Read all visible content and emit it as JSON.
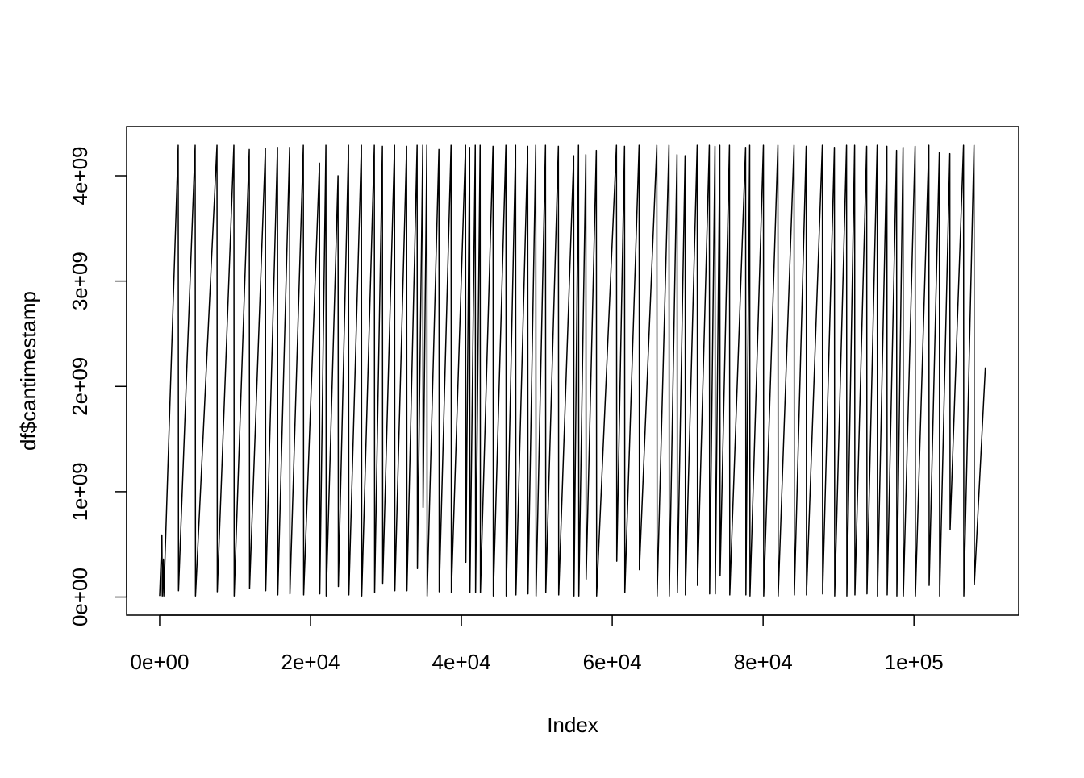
{
  "chart_data": {
    "type": "line",
    "x_label": "Index",
    "y_label": "df$cantimestamp",
    "color": "#000000",
    "xlim": [
      -4380,
      113880
    ],
    "ylim": [
      -172000000,
      4467000000
    ],
    "xticks": [
      {
        "value": 0,
        "label": "0e+00"
      },
      {
        "value": 20000,
        "label": "2e+04"
      },
      {
        "value": 40000,
        "label": "4e+04"
      },
      {
        "value": 60000,
        "label": "6e+04"
      },
      {
        "value": 80000,
        "label": "8e+04"
      },
      {
        "value": 100000,
        "label": "1e+05"
      }
    ],
    "yticks": [
      {
        "value": 0,
        "label": "0e+00"
      },
      {
        "value": 1000000000,
        "label": "1e+09"
      },
      {
        "value": 2000000000,
        "label": "2e+09"
      },
      {
        "value": 3000000000,
        "label": "3e+09"
      },
      {
        "value": 4000000000,
        "label": "4e+09"
      }
    ],
    "x": [
      0,
      300,
      350,
      500,
      550,
      2460,
      2500,
      4710,
      4750,
      7600,
      7640,
      9840,
      9880,
      11880,
      11920,
      14020,
      14060,
      15620,
      15660,
      17230,
      17270,
      19050,
      19090,
      21190,
      21230,
      22040,
      22080,
      23650,
      23690,
      25040,
      25080,
      26750,
      26790,
      28460,
      28500,
      29530,
      29570,
      31140,
      31180,
      32740,
      32780,
      34130,
      34170,
      34880,
      34920,
      35420,
      35460,
      37020,
      37060,
      38630,
      38670,
      40550,
      40590,
      41090,
      41130,
      41840,
      41880,
      42480,
      42520,
      44190,
      44230,
      45900,
      45940,
      47190,
      47230,
      48790,
      48830,
      49860,
      49900,
      51150,
      51190,
      52860,
      52900,
      54890,
      54930,
      55530,
      55570,
      56500,
      56540,
      57890,
      57930,
      60560,
      60600,
      61630,
      61670,
      63560,
      63600,
      65910,
      65950,
      67520,
      67560,
      68590,
      68630,
      69660,
      69700,
      71260,
      71300,
      72870,
      72910,
      73620,
      73660,
      74260,
      74300,
      75540,
      75580,
      77680,
      77720,
      78220,
      78260,
      80040,
      80080,
      81960,
      82000,
      84100,
      84140,
      85710,
      85750,
      87850,
      87890,
      89450,
      89490,
      91060,
      91100,
      92130,
      92170,
      93730,
      93770,
      95120,
      95160,
      96410,
      96450,
      97690,
      97730,
      98550,
      98590,
      100150,
      100190,
      101970,
      102010,
      103360,
      103400,
      104750,
      104790,
      106570,
      106610,
      107960,
      108000,
      109460
    ],
    "values": [
      10000000,
      590000000,
      10000000,
      360000000,
      10000000,
      4290000000,
      60000000,
      4290000000,
      10000000,
      4290000000,
      50000000,
      4290000000,
      10000000,
      4250000000,
      80000000,
      4260000000,
      60000000,
      4270000000,
      20000000,
      4270000000,
      30000000,
      4290000000,
      20000000,
      4120000000,
      30000000,
      4290000000,
      10000000,
      4000000000,
      100000000,
      4290000000,
      20000000,
      4290000000,
      10000000,
      4290000000,
      40000000,
      4280000000,
      130000000,
      4290000000,
      60000000,
      4280000000,
      60000000,
      4290000000,
      270000000,
      4290000000,
      850000000,
      4290000000,
      10000000,
      4250000000,
      50000000,
      4290000000,
      40000000,
      4290000000,
      330000000,
      4270000000,
      40000000,
      4290000000,
      40000000,
      4290000000,
      40000000,
      4280000000,
      10000000,
      4290000000,
      10000000,
      4290000000,
      20000000,
      4280000000,
      30000000,
      4290000000,
      10000000,
      4290000000,
      40000000,
      4280000000,
      20000000,
      4190000000,
      10000000,
      4290000000,
      10000000,
      4200000000,
      170000000,
      4240000000,
      10000000,
      4290000000,
      340000000,
      4280000000,
      40000000,
      4290000000,
      260000000,
      4290000000,
      10000000,
      4290000000,
      10000000,
      4200000000,
      40000000,
      4190000000,
      20000000,
      4290000000,
      110000000,
      4290000000,
      30000000,
      4280000000,
      30000000,
      4290000000,
      200000000,
      4290000000,
      20000000,
      4270000000,
      20000000,
      4290000000,
      10000000,
      4290000000,
      10000000,
      4290000000,
      10000000,
      4290000000,
      20000000,
      4280000000,
      20000000,
      4290000000,
      30000000,
      4270000000,
      10000000,
      4290000000,
      10000000,
      4290000000,
      20000000,
      4280000000,
      30000000,
      4290000000,
      10000000,
      4280000000,
      20000000,
      4240000000,
      10000000,
      4270000000,
      10000000,
      4280000000,
      10000000,
      4290000000,
      110000000,
      4220000000,
      10000000,
      4210000000,
      640000000,
      4290000000,
      10000000,
      4290000000,
      120000000,
      2180000000
    ]
  }
}
